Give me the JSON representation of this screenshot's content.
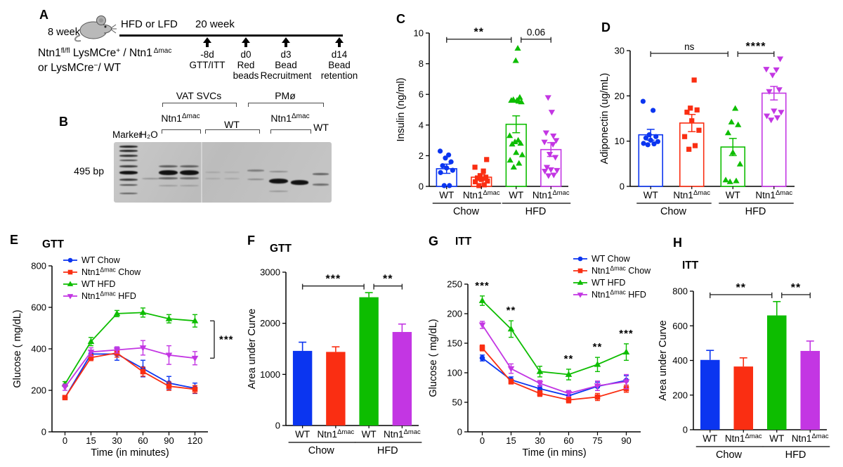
{
  "panels": {
    "a": {
      "label": "A",
      "age": "8 week",
      "diet": "HFD or LFD",
      "duration": "20 week",
      "mouse_icon": "mouse-icon",
      "genotype": {
        "l1b1": "Ntn1",
        "l1s1": "fl/fl",
        "l1b2": " LysMCre",
        "l1s2": "+",
        "l1b3": " / Ntn1",
        "l1s3": "Δmac",
        "l2b1": "or LysMCre",
        "l2s1": "−",
        "l2b2": "/ WT"
      },
      "events": [
        {
          "day": "-8d",
          "desc": "GTT/ITT"
        },
        {
          "day": "d0",
          "desc": "Red\nbeads"
        },
        {
          "day": "d3",
          "desc": "Bead\nRecruitment"
        },
        {
          "day": "d14",
          "desc": "Bead\nretention"
        }
      ]
    },
    "b": {
      "label": "B",
      "size_label": "495 bp",
      "col_marker": "Marker",
      "col_h2o": "H₂O",
      "grp_vat": "VAT SVCs",
      "grp_pmo": "PMø",
      "vat_ntn1_base": "Ntn1",
      "vat_ntn1_sup": "Δmac",
      "vat_wt": "WT",
      "pmo_ntn1_base": "Ntn1",
      "pmo_ntn1_sup": "Δmac",
      "pmo_wt": "WT",
      "gel": {
        "ladder": {
          "x": 8,
          "w": 26,
          "bands": [
            {
              "y": 5,
              "h": 2.6,
              "o": 0.95
            },
            {
              "y": 11,
              "h": 2.6,
              "o": 0.9
            },
            {
              "y": 18,
              "h": 2.6,
              "o": 0.85
            },
            {
              "y": 25,
              "h": 2.4,
              "o": 0.75
            },
            {
              "y": 33,
              "h": 2.8,
              "o": 0.8
            },
            {
              "y": 41,
              "h": 4.6,
              "o": 1
            },
            {
              "y": 52,
              "h": 2.8,
              "o": 0.8
            },
            {
              "y": 60,
              "h": 2.4,
              "o": 0.7
            },
            {
              "y": 72,
              "h": 2.4,
              "o": 0.6
            }
          ]
        },
        "lanes": [
          {
            "x": 40,
            "w": 26,
            "bands": [
              {
                "y": 51,
                "h": 2.2,
                "o": 0.28
              }
            ]
          },
          {
            "x": 64,
            "w": 27,
            "bands": [
              {
                "y": 33,
                "h": 3,
                "o": 0.6
              },
              {
                "y": 40,
                "h": 7,
                "o": 1
              },
              {
                "y": 50,
                "h": 2.6,
                "o": 0.55
              },
              {
                "y": 61,
                "h": 2,
                "o": 0.22
              }
            ]
          },
          {
            "x": 94,
            "w": 27,
            "bands": [
              {
                "y": 33,
                "h": 3,
                "o": 0.58
              },
              {
                "y": 40,
                "h": 7,
                "o": 1
              },
              {
                "y": 50,
                "h": 2.6,
                "o": 0.5
              },
              {
                "y": 61,
                "h": 2,
                "o": 0.2
              }
            ]
          },
          {
            "x": 130,
            "w": 22,
            "bands": [
              {
                "y": 42,
                "h": 2,
                "o": 0.14
              },
              {
                "y": 51,
                "h": 2,
                "o": 0.12
              }
            ]
          },
          {
            "x": 157,
            "w": 22,
            "bands": [
              {
                "y": 42,
                "h": 2,
                "o": 0.12
              },
              {
                "y": 51,
                "h": 2,
                "o": 0.13
              }
            ]
          },
          {
            "x": 190,
            "w": 24,
            "bands": [
              {
                "y": 39,
                "h": 2.6,
                "o": 0.4
              },
              {
                "y": 52,
                "h": 2.2,
                "o": 0.32
              }
            ]
          },
          {
            "x": 221,
            "w": 27,
            "bands": [
              {
                "y": 41,
                "h": 2.2,
                "o": 0.32
              },
              {
                "y": 52,
                "h": 7,
                "o": 1
              },
              {
                "y": 69,
                "h": 2,
                "o": 0.25
              }
            ]
          },
          {
            "x": 252,
            "w": 25,
            "bands": [
              {
                "y": 54,
                "h": 6.5,
                "o": 1
              }
            ]
          },
          {
            "x": 283,
            "w": 23,
            "bands": [
              {
                "y": 44,
                "h": 2.6,
                "o": 0.55
              },
              {
                "y": 59,
                "h": 2.6,
                "o": 0.5
              }
            ]
          }
        ],
        "seam_x": 124
      }
    },
    "c": {
      "label": "C"
    },
    "d": {
      "label": "D"
    },
    "e": {
      "label": "E"
    },
    "f": {
      "label": "F"
    },
    "g": {
      "label": "G"
    },
    "h": {
      "label": "H"
    }
  },
  "colors": {
    "wt_chow": "#0b35f0",
    "ntn1_chow": "#fa2e12",
    "wt_hfd": "#0dbd00",
    "ntn1_hfd": "#c336e3"
  },
  "chart_data": [
    {
      "id": "C",
      "type": "scatter-bar",
      "title": "",
      "ylabel": "Insulin (ng/ml)",
      "ylim": [
        0,
        10
      ],
      "yticks": [
        0,
        2,
        4,
        6,
        8,
        10
      ],
      "categories": [
        "WT",
        "Ntn1^Δmac",
        "WT",
        "Ntn1^Δmac"
      ],
      "groups": [
        {
          "label": "Chow",
          "from": 0,
          "to": 1
        },
        {
          "label": "HFD",
          "from": 2,
          "to": 3
        }
      ],
      "series": [
        {
          "name": "WT Chow",
          "color": "#0b35f0",
          "marker": "circle",
          "mean": 1.15,
          "sem": 0.3,
          "points": [
            0.05,
            0.05,
            0.9,
            1.05,
            1.2,
            1.35,
            1.6,
            1.85,
            2.05,
            2.3
          ]
        },
        {
          "name": "Ntn1^Δmac Chow",
          "color": "#fa2e12",
          "marker": "square",
          "mean": 0.6,
          "sem": 0.2,
          "points": [
            0.05,
            0.1,
            0.3,
            0.35,
            0.45,
            0.55,
            0.6,
            0.7,
            1.0,
            1.25,
            1.75
          ]
        },
        {
          "name": "WT HFD",
          "color": "#0dbd00",
          "marker": "triangle-up",
          "mean": 4.05,
          "sem": 0.55,
          "points": [
            1.25,
            1.5,
            1.7,
            2.05,
            2.2,
            2.75,
            2.8,
            2.9,
            3.0,
            3.3,
            5.5,
            5.55,
            5.6,
            5.6,
            5.65,
            5.8,
            8.2,
            9.0
          ]
        },
        {
          "name": "Ntn1^Δmac HFD",
          "color": "#c336e3",
          "marker": "triangle-down",
          "mean": 2.4,
          "sem": 0.45,
          "points": [
            0.7,
            0.75,
            1.0,
            1.05,
            1.1,
            1.25,
            1.9,
            2.1,
            2.75,
            2.9,
            3.0,
            3.3,
            3.5,
            4.85,
            5.8
          ]
        }
      ],
      "sig": [
        {
          "from": 0,
          "to": 2,
          "label": "**",
          "y": 9.6,
          "o2": -7
        },
        {
          "from": 2,
          "to": 3,
          "label": "0.06",
          "y": 9.6,
          "o1": 7
        }
      ]
    },
    {
      "id": "D",
      "type": "scatter-bar",
      "title": "",
      "ylabel": "Adiponectin (ug/mL)",
      "ylim": [
        0,
        30
      ],
      "yticks": [
        0,
        10,
        20,
        30
      ],
      "categories": [
        "WT",
        "Ntn1^Δmac",
        "WT",
        "Ntn1^Δmac"
      ],
      "groups": [
        {
          "label": "Chow",
          "from": 0,
          "to": 1
        },
        {
          "label": "HFD",
          "from": 2,
          "to": 3
        }
      ],
      "series": [
        {
          "name": "WT Chow",
          "color": "#0b35f0",
          "marker": "circle",
          "mean": 11.4,
          "sem": 1.2,
          "points": [
            9.2,
            9.4,
            9.5,
            9.9,
            10.2,
            10.7,
            11.0,
            11.4,
            16.8,
            18.8
          ]
        },
        {
          "name": "Ntn1^Δmac Chow",
          "color": "#fa2e12",
          "marker": "square",
          "mean": 14.0,
          "sem": 1.9,
          "points": [
            8.2,
            9.0,
            11.0,
            12.4,
            14.5,
            16.4,
            16.9,
            17.3,
            23.5
          ]
        },
        {
          "name": "WT HFD",
          "color": "#0dbd00",
          "marker": "triangle-up",
          "mean": 8.7,
          "sem": 1.9,
          "points": [
            1.0,
            1.2,
            1.4,
            4.9,
            7.5,
            11.8,
            13.6,
            14.2,
            17.2
          ]
        },
        {
          "name": "Ntn1^Δmac HFD",
          "color": "#c336e3",
          "marker": "triangle-down",
          "mean": 20.6,
          "sem": 1.5,
          "points": [
            14.7,
            15.2,
            15.6,
            16.4,
            16.7,
            21.0,
            21.4,
            24.6,
            25.8,
            25.9,
            28.2
          ]
        }
      ],
      "sig": [
        {
          "from": 0,
          "to": 2,
          "label": "ns",
          "y": 29.4,
          "o2": -7
        },
        {
          "from": 2,
          "to": 3,
          "label": "****",
          "y": 29.4,
          "o1": 7
        }
      ]
    },
    {
      "id": "E",
      "type": "line",
      "title": "GTT",
      "ylabel": "Glucose ( mg/dL)",
      "xlabel": "Time (in minutes)",
      "ylim": [
        0,
        800
      ],
      "yticks": [
        0,
        200,
        400,
        600,
        800
      ],
      "x": [
        0,
        15,
        30,
        60,
        90,
        120
      ],
      "legend_pos": "top-left",
      "series": [
        {
          "name": "WT Chow",
          "color": "#0b35f0",
          "marker": "circle",
          "values": [
            165,
            375,
            375,
            305,
            235,
            210
          ],
          "sem": [
            10,
            18,
            30,
            40,
            32,
            25
          ]
        },
        {
          "name": "Ntn1^Δmac Chow",
          "color": "#fa2e12",
          "marker": "square",
          "values": [
            165,
            358,
            380,
            290,
            220,
            205
          ],
          "sem": [
            10,
            15,
            20,
            22,
            20,
            18
          ]
        },
        {
          "name": "WT HFD",
          "color": "#0dbd00",
          "marker": "triangle-up",
          "values": [
            230,
            435,
            570,
            575,
            545,
            535
          ],
          "sem": [
            12,
            20,
            15,
            22,
            20,
            30
          ]
        },
        {
          "name": "Ntn1^Δmac HFD",
          "color": "#c336e3",
          "marker": "triangle-down",
          "values": [
            215,
            385,
            395,
            405,
            370,
            355
          ],
          "sem": [
            15,
            20,
            15,
            35,
            45,
            32
          ]
        }
      ],
      "right_bracket": {
        "from_series": 2,
        "to_series": 3,
        "label": "***"
      }
    },
    {
      "id": "F",
      "type": "bar",
      "title": "GTT",
      "ylabel": "Area under Curve",
      "ylim": [
        0,
        3000
      ],
      "yticks": [
        0,
        1000,
        2000,
        3000
      ],
      "categories": [
        "WT",
        "Ntn1^Δmac",
        "WT",
        "Ntn1^Δmac"
      ],
      "groups": [
        {
          "label": "Chow",
          "from": 0,
          "to": 1
        },
        {
          "label": "HFD",
          "from": 2,
          "to": 3
        }
      ],
      "values": [
        1460,
        1440,
        2510,
        1830
      ],
      "sems": [
        170,
        100,
        90,
        155
      ],
      "bar_colors": [
        "#0b35f0",
        "#fa2e12",
        "#0dbd00",
        "#c336e3"
      ],
      "sig": [
        {
          "from": 0,
          "to": 2,
          "label": "***",
          "y": 2730,
          "o2": -7
        },
        {
          "from": 2,
          "to": 3,
          "label": "**",
          "y": 2730,
          "o1": 7
        }
      ]
    },
    {
      "id": "G",
      "type": "line",
      "title": "ITT",
      "ylabel": "Glucose ( mg/dL)",
      "xlabel": "Time (in mins)",
      "ylim": [
        0,
        250
      ],
      "yticks": [
        0,
        50,
        100,
        150,
        200,
        250
      ],
      "x": [
        0,
        15,
        30,
        60,
        75,
        90
      ],
      "legend_pos": "top-right",
      "series": [
        {
          "name": "WT Chow",
          "color": "#0b35f0",
          "marker": "circle",
          "values": [
            125,
            88,
            73,
            61,
            77,
            87
          ],
          "sem": [
            5,
            5,
            5,
            8,
            7,
            8
          ]
        },
        {
          "name": "Ntn1^Δmac Chow",
          "color": "#fa2e12",
          "marker": "square",
          "values": [
            142,
            85,
            65,
            54,
            59,
            73
          ],
          "sem": [
            5,
            4,
            5,
            5,
            6,
            6
          ]
        },
        {
          "name": "WT HFD",
          "color": "#0dbd00",
          "marker": "triangle-up",
          "values": [
            222,
            174,
            102,
            97,
            114,
            135
          ],
          "sem": [
            8,
            14,
            9,
            9,
            12,
            14
          ]
        },
        {
          "name": "Ntn1^Δmac HFD",
          "color": "#c336e3",
          "marker": "triangle-down",
          "values": [
            181,
            107,
            82,
            65,
            78,
            85
          ],
          "sem": [
            6,
            8,
            5,
            5,
            8,
            12
          ]
        }
      ],
      "stars": [
        {
          "xi": 0,
          "label": "***"
        },
        {
          "xi": 1,
          "label": "**"
        },
        {
          "xi": 3,
          "label": "**"
        },
        {
          "xi": 4,
          "label": "**"
        },
        {
          "xi": 5,
          "label": "***"
        }
      ]
    },
    {
      "id": "H",
      "type": "bar",
      "title": "ITT",
      "ylabel": "Area under Curve",
      "ylim": [
        0,
        800
      ],
      "yticks": [
        0,
        200,
        400,
        600,
        800
      ],
      "categories": [
        "WT",
        "Ntn1^Δmac",
        "WT",
        "Ntn1^Δmac"
      ],
      "groups": [
        {
          "label": "Chow",
          "from": 0,
          "to": 1
        },
        {
          "label": "HFD",
          "from": 2,
          "to": 3
        }
      ],
      "values": [
        403,
        365,
        660,
        455
      ],
      "sems": [
        55,
        50,
        80,
        57
      ],
      "bar_colors": [
        "#0b35f0",
        "#fa2e12",
        "#0dbd00",
        "#c336e3"
      ],
      "sig": [
        {
          "from": 0,
          "to": 2,
          "label": "**",
          "y": 780,
          "o2": -7
        },
        {
          "from": 2,
          "to": 3,
          "label": "**",
          "y": 780,
          "o1": 7
        }
      ]
    }
  ]
}
